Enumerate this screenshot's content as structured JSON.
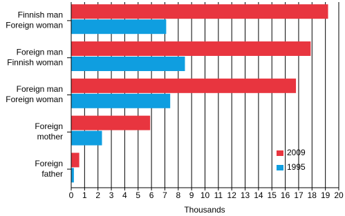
{
  "chart_data": {
    "type": "hbar",
    "categories": [
      [
        "Finnish man",
        "Foreign woman"
      ],
      [
        "Foreign man",
        "Finnish woman"
      ],
      [
        "Foreign man",
        "Foreign woman"
      ],
      [
        "Foreign",
        "mother"
      ],
      [
        "Foreign",
        "father"
      ]
    ],
    "series": [
      {
        "name": "2009",
        "color": "#e8353f",
        "values": [
          19.2,
          17.9,
          16.8,
          5.9,
          0.6
        ]
      },
      {
        "name": "1995",
        "color": "#0f9ee0",
        "values": [
          7.1,
          8.5,
          7.4,
          2.3,
          0.2
        ]
      }
    ],
    "xlabel": "Thousands",
    "xlim": [
      0,
      20
    ],
    "xticks": [
      0,
      1,
      2,
      3,
      4,
      5,
      6,
      7,
      8,
      9,
      10,
      11,
      12,
      13,
      14,
      15,
      16,
      17,
      18,
      19,
      20
    ],
    "grid": true,
    "legend": "lower right"
  }
}
